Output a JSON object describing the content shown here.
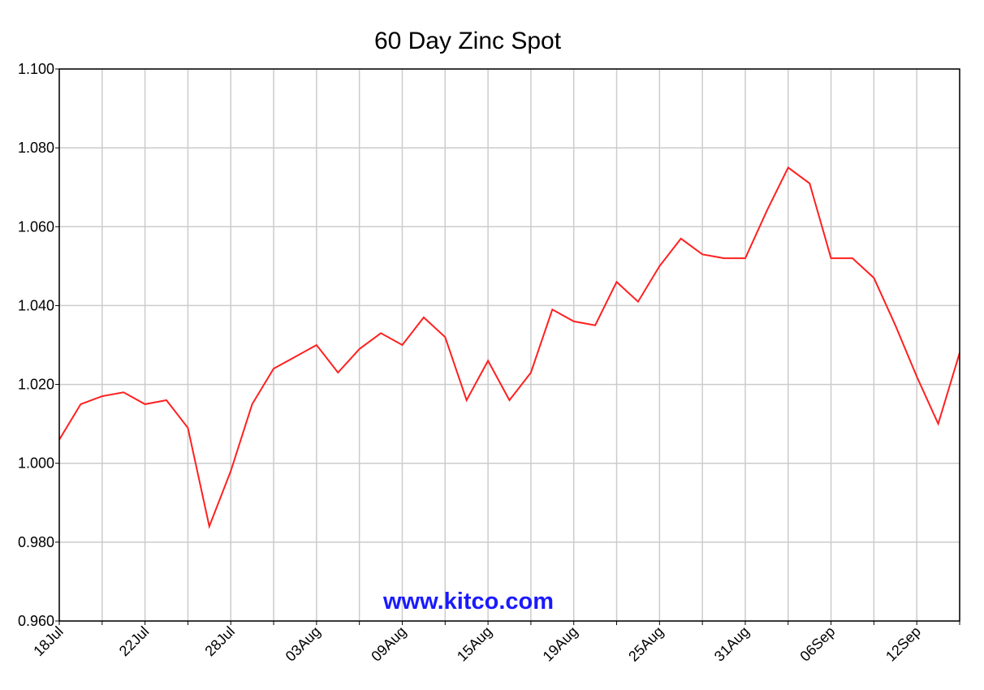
{
  "chart_data": {
    "type": "line",
    "title": "60 Day Zinc Spot",
    "watermark": "www.kitco.com",
    "categories": [
      "18Jul",
      null,
      null,
      null,
      "22Jul",
      null,
      null,
      null,
      "28Jul",
      null,
      null,
      null,
      "03Aug",
      null,
      null,
      null,
      "09Aug",
      null,
      null,
      null,
      "15Aug",
      null,
      null,
      null,
      "19Aug",
      null,
      null,
      null,
      "25Aug",
      null,
      null,
      null,
      "31Aug",
      null,
      null,
      null,
      "06Sep",
      null,
      null,
      null,
      "12Sep",
      null,
      null
    ],
    "series": [
      {
        "name": "Zinc Spot",
        "color": "#ff2020",
        "values": [
          1.006,
          1.015,
          1.017,
          1.018,
          1.015,
          1.016,
          1.009,
          0.984,
          0.998,
          1.015,
          1.024,
          1.027,
          1.03,
          1.023,
          1.029,
          1.033,
          1.03,
          1.037,
          1.032,
          1.016,
          1.026,
          1.016,
          1.023,
          1.039,
          1.036,
          1.035,
          1.046,
          1.041,
          1.05,
          1.057,
          1.053,
          1.052,
          1.052,
          1.064,
          1.075,
          1.071,
          1.052,
          1.052,
          1.047,
          1.035,
          1.022,
          1.01,
          1.028
        ]
      }
    ],
    "ylim": [
      0.96,
      1.1
    ],
    "yticks": [
      {
        "value": 0.96,
        "label": "0.960"
      },
      {
        "value": 0.98,
        "label": "0.980"
      },
      {
        "value": 1.0,
        "label": "1.000"
      },
      {
        "value": 1.02,
        "label": "1.020"
      },
      {
        "value": 1.04,
        "label": "1.040"
      },
      {
        "value": 1.06,
        "label": "1.060"
      },
      {
        "value": 1.08,
        "label": "1.080"
      },
      {
        "value": 1.1,
        "label": "1.100"
      }
    ],
    "grid": true
  }
}
